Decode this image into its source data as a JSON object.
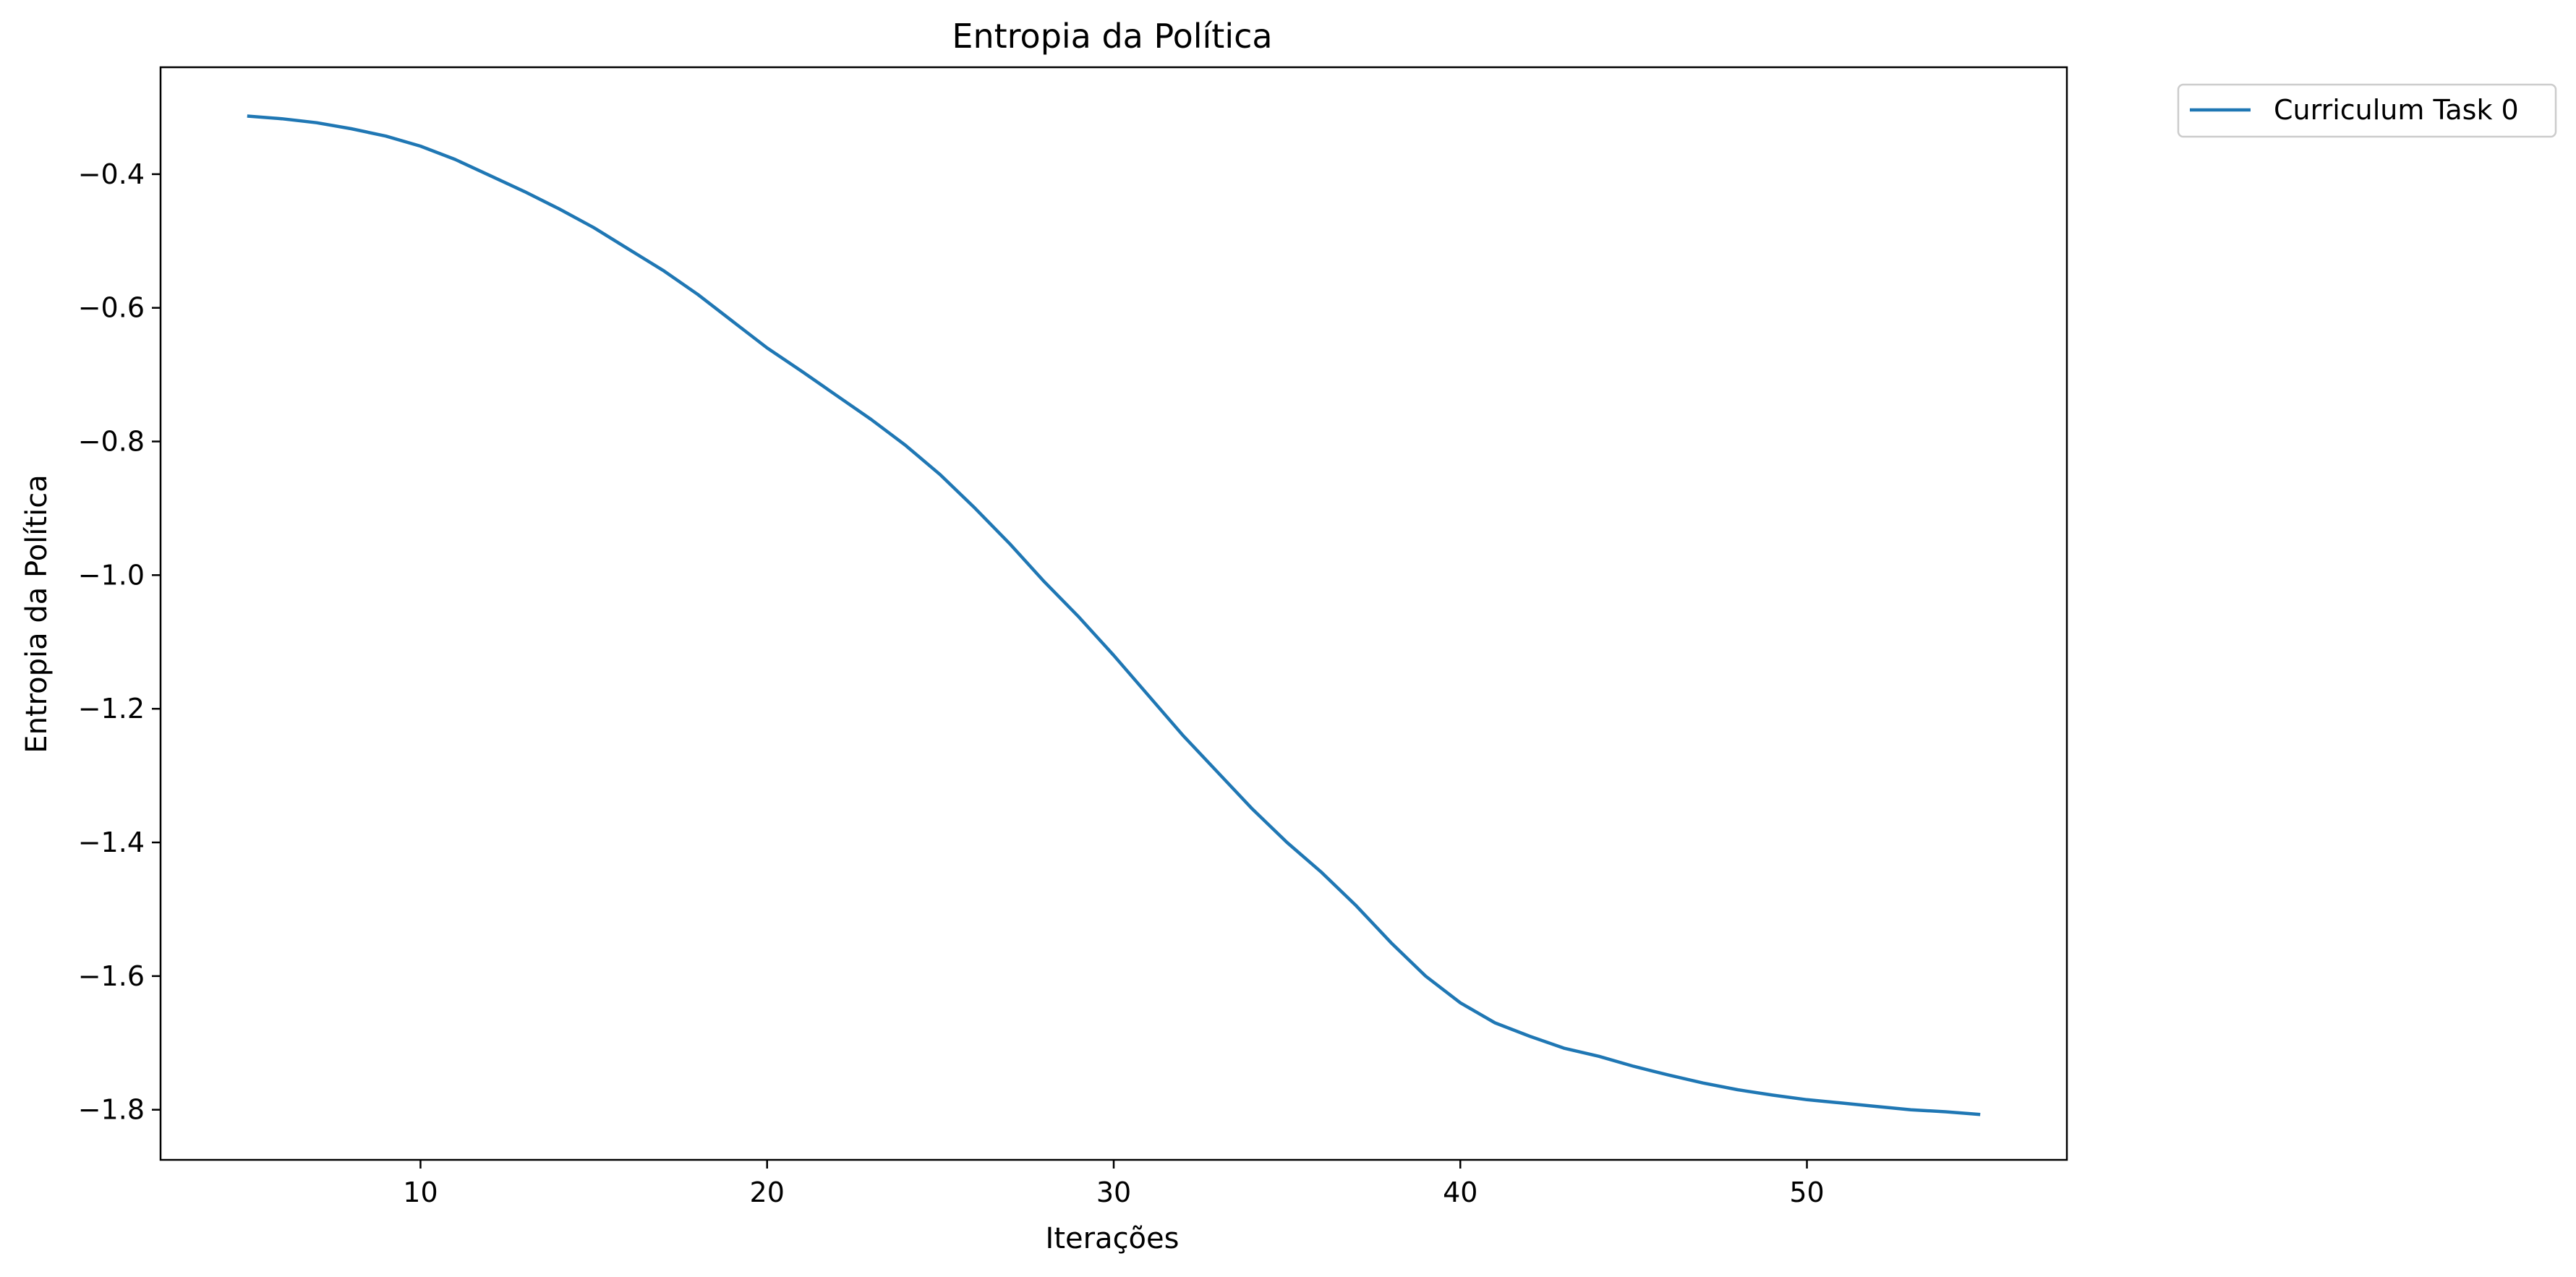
{
  "chart_data": {
    "type": "line",
    "title": "Entropia da Política",
    "xlabel": "Iterações",
    "ylabel": "Entropia da Política",
    "xlim": [
      2.5,
      57.5
    ],
    "ylim": [
      -1.875,
      -0.24
    ],
    "xticks": [
      10,
      20,
      30,
      40,
      50
    ],
    "yticks": [
      -0.4,
      -0.6,
      -0.8,
      -1.0,
      -1.2,
      -1.4,
      -1.6,
      -1.8
    ],
    "xtick_labels": [
      "10",
      "20",
      "30",
      "40",
      "50"
    ],
    "ytick_labels": [
      "−0.4",
      "−0.6",
      "−0.8",
      "−1.0",
      "−1.2",
      "−1.4",
      "−1.6",
      "−1.8"
    ],
    "grid": false,
    "legend_position": "outside-top-right",
    "series": [
      {
        "name": "Curriculum Task 0",
        "color": "#1f77b4",
        "x": [
          5,
          6,
          7,
          8,
          9,
          10,
          11,
          12,
          13,
          14,
          15,
          16,
          17,
          18,
          19,
          20,
          21,
          22,
          23,
          24,
          25,
          26,
          27,
          28,
          29,
          30,
          31,
          32,
          33,
          34,
          35,
          36,
          37,
          38,
          39,
          40,
          41,
          42,
          43,
          44,
          45,
          46,
          47,
          48,
          49,
          50,
          51,
          52,
          53,
          54,
          55
        ],
        "y": [
          -0.313,
          -0.317,
          -0.323,
          -0.332,
          -0.343,
          -0.358,
          -0.378,
          -0.402,
          -0.426,
          -0.452,
          -0.48,
          -0.512,
          -0.544,
          -0.58,
          -0.62,
          -0.66,
          -0.695,
          -0.731,
          -0.767,
          -0.806,
          -0.85,
          -0.9,
          -0.953,
          -1.01,
          -1.063,
          -1.12,
          -1.18,
          -1.24,
          -1.295,
          -1.35,
          -1.4,
          -1.445,
          -1.495,
          -1.55,
          -1.6,
          -1.64,
          -1.67,
          -1.69,
          -1.708,
          -1.72,
          -1.735,
          -1.748,
          -1.76,
          -1.77,
          -1.778,
          -1.785,
          -1.79,
          -1.795,
          -1.8,
          -1.803,
          -1.807
        ]
      }
    ]
  }
}
